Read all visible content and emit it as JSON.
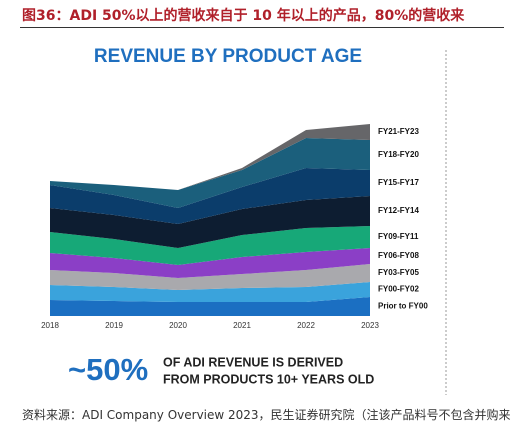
{
  "header": {
    "title": "图36：ADI 50%以上的营收来自于 10 年以上的产品，80%的营收来"
  },
  "chart_data": {
    "type": "stacked_area",
    "title": "REVENUE BY PRODUCT AGE",
    "categories": [
      "2018",
      "2019",
      "2020",
      "2021",
      "2022",
      "2023"
    ],
    "ylim": [
      0,
      200
    ],
    "series": [
      {
        "name": "Prior to FY00",
        "color": "#1b6fc2",
        "values": [
          16,
          15,
          14,
          14,
          14,
          19
        ]
      },
      {
        "name": "FY00-FY02",
        "color": "#3aa3dc",
        "values": [
          15,
          14,
          12,
          14,
          15,
          15
        ]
      },
      {
        "name": "FY03-FY05",
        "color": "#a9a9ad",
        "values": [
          15,
          14,
          12,
          14,
          17,
          18
        ]
      },
      {
        "name": "FY06-FY08",
        "color": "#8b3fc6",
        "values": [
          17,
          15,
          13,
          17,
          18,
          16
        ]
      },
      {
        "name": "FY09-FY11",
        "color": "#17a878",
        "values": [
          21,
          19,
          17,
          22,
          24,
          22
        ]
      },
      {
        "name": "FY12-FY14",
        "color": "#0d1d31",
        "values": [
          24,
          24,
          24,
          26,
          28,
          30
        ]
      },
      {
        "name": "FY15-FY17",
        "color": "#0b3d6b",
        "values": [
          23,
          20,
          16,
          22,
          32,
          26
        ]
      },
      {
        "name": "FY18-FY20",
        "color": "#1b5f7c",
        "values": [
          4,
          10,
          18,
          17,
          30,
          30
        ]
      },
      {
        "name": "FY21-FY23",
        "color": "#666669",
        "values": [
          0,
          0,
          0,
          2,
          8,
          16
        ]
      }
    ]
  },
  "callout": {
    "figure": "~50%",
    "lines": [
      "OF ADI REVENUE IS DERIVED",
      "FROM PRODUCTS 10+ YEARS OLD"
    ]
  },
  "source": "资料来源：ADI Company Overview 2023，民生证券研究院（注该产品料号不包含并购来"
}
